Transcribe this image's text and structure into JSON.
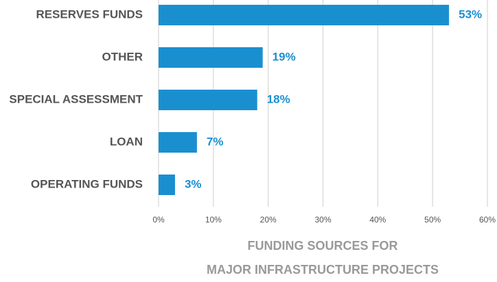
{
  "chart_data": {
    "type": "hbar",
    "title": [
      "FUNDING SOURCES FOR",
      "MAJOR INFRASTRUCTURE PROJECTS"
    ],
    "categories": [
      "RESERVES FUNDS",
      "OTHER",
      "SPECIAL ASSESSMENT",
      "LOAN",
      "OPERATING FUNDS"
    ],
    "values": [
      53,
      19,
      18,
      7,
      3
    ],
    "value_labels": [
      "53%",
      "19%",
      "18%",
      "7%",
      "3%"
    ],
    "color": "#1a8fd0",
    "xlim": [
      0,
      60
    ],
    "xticks": [
      {
        "value": 0,
        "label": "0%"
      },
      {
        "value": 10,
        "label": "10%"
      },
      {
        "value": 20,
        "label": "20%"
      },
      {
        "value": 30,
        "label": "30%"
      },
      {
        "value": 40,
        "label": "40%"
      },
      {
        "value": 50,
        "label": "50%"
      },
      {
        "value": 60,
        "label": "60%"
      }
    ],
    "grid": true
  }
}
